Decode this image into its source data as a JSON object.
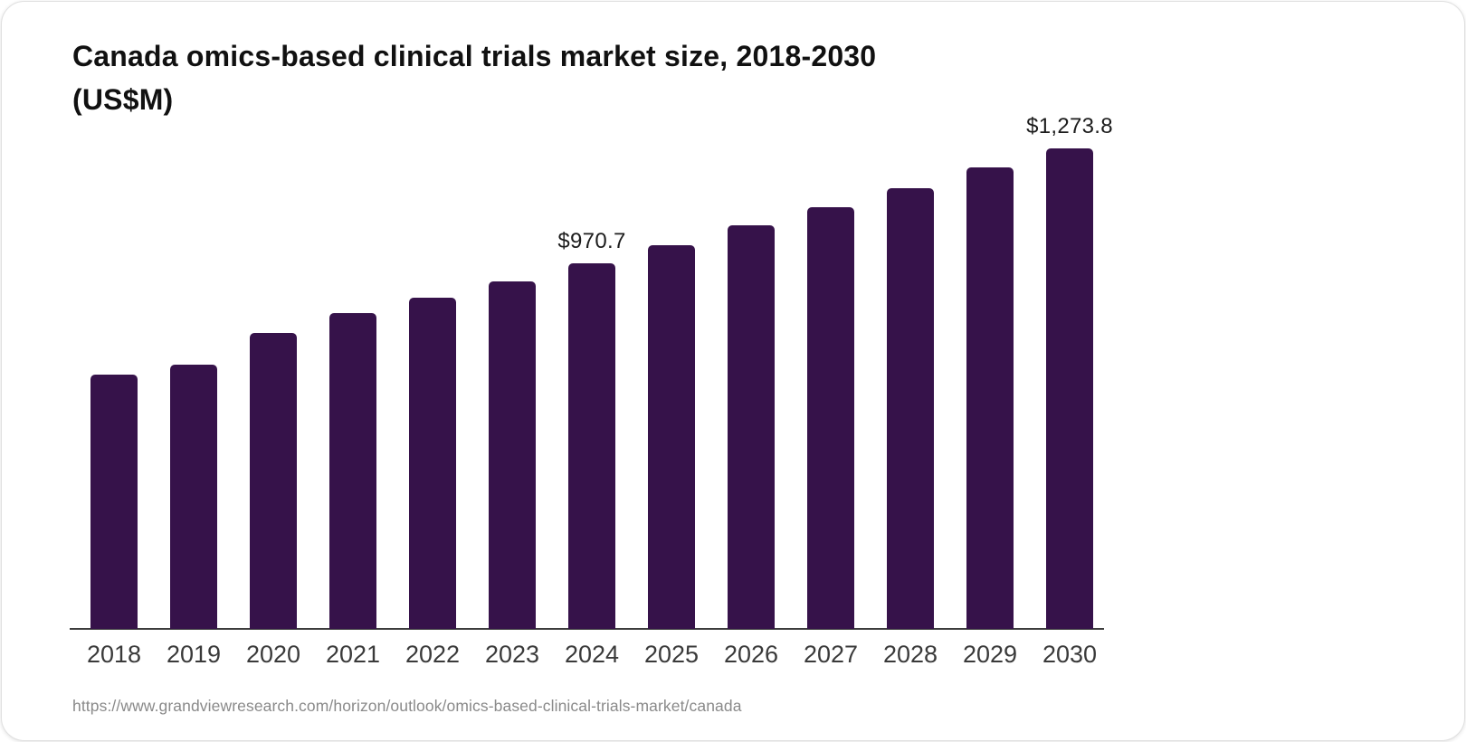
{
  "title": {
    "line1": "Canada omics-based clinical trials market size, 2018-2030",
    "line2": "(US$M)"
  },
  "source_url": "https://www.grandviewresearch.com/horizon/outlook/omics-based-clinical-trials-market/canada",
  "colors": {
    "bar": "#36124a",
    "axis": "#3d3d3d",
    "tick_label": "#3a3a3a",
    "value_label": "#1c1c1c",
    "title": "#111111",
    "source": "#8a8a8a"
  },
  "chart_data": {
    "type": "bar",
    "title": "Canada omics-based clinical trials market size, 2018-2030 (US$M)",
    "units": "US$M",
    "categories": [
      "2018",
      "2019",
      "2020",
      "2021",
      "2022",
      "2023",
      "2024",
      "2025",
      "2026",
      "2027",
      "2028",
      "2029",
      "2030"
    ],
    "values": [
      674,
      702,
      785,
      837,
      878,
      922,
      970.7,
      1018,
      1070,
      1120,
      1169,
      1224,
      1273.8
    ],
    "value_labels": [
      "",
      "",
      "",
      "",
      "",
      "",
      "$970.7",
      "",
      "",
      "",
      "",
      "",
      "$1,273.8"
    ],
    "annotated_points": [
      {
        "category": "2024",
        "label": "$970.7",
        "value": 970.7
      },
      {
        "category": "2030",
        "label": "$1,273.8",
        "value": 1273.8
      }
    ],
    "xlabel": "",
    "ylabel": "",
    "ylim": [
      0,
      1350
    ],
    "grid": false,
    "legend": false,
    "note": "values without printed labels are estimated from bar heights"
  }
}
